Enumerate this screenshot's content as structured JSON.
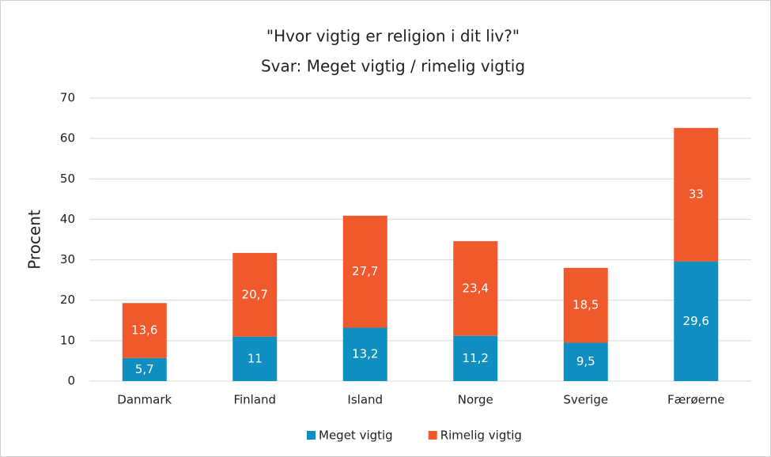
{
  "chart_data": {
    "type": "stacked_bar",
    "title": "\"Hvor vigtig er religion i dit liv?\"",
    "subtitle": "Svar: Meget vigtig / rimelig vigtig",
    "y_label": "Procent",
    "categories": [
      "Danmark",
      "Finland",
      "Island",
      "Norge",
      "Sverige",
      "Færøerne"
    ],
    "series": [
      {
        "name": "Meget vigtig",
        "color": "#0f8fbf",
        "values": [
          5.7,
          11,
          13.2,
          11.2,
          9.5,
          29.6
        ],
        "value_labels": [
          "5,7",
          "11",
          "13,2",
          "11,2",
          "9,5",
          "29,6"
        ]
      },
      {
        "name": "Rimelig vigtig",
        "color": "#f0592b",
        "values": [
          13.6,
          20.7,
          27.7,
          23.4,
          18.5,
          33
        ],
        "value_labels": [
          "13,6",
          "20,7",
          "27,7",
          "23,4",
          "18,5",
          "33"
        ]
      }
    ],
    "ylim": [
      0,
      70
    ],
    "yticks": [
      0,
      10,
      20,
      30,
      40,
      50,
      60,
      70
    ],
    "grid": true,
    "legend": "bottom"
  }
}
